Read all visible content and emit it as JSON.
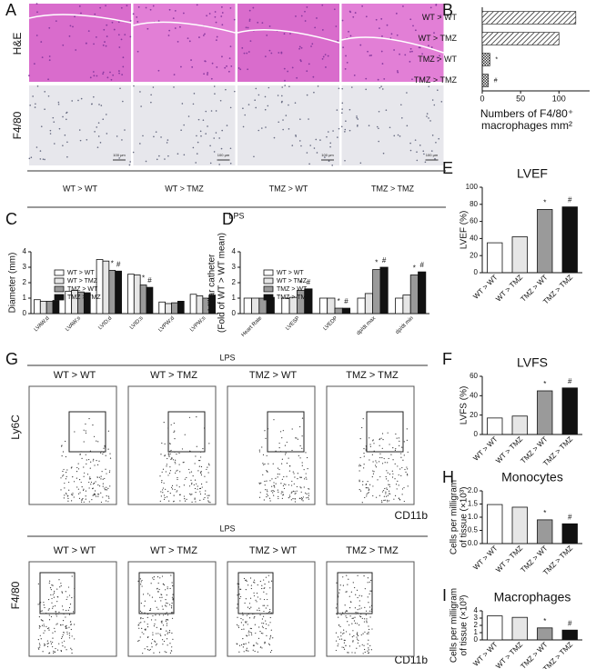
{
  "figure": {
    "panel_letters": [
      "A",
      "B",
      "C",
      "D",
      "E",
      "F",
      "G",
      "H",
      "I"
    ],
    "he_label": "H&E",
    "f480_label": "F4/80",
    "groups": [
      "WT > WT",
      "WT > TMZ",
      "TMZ > WT",
      "TMZ > TMZ"
    ],
    "lps": "LPS",
    "scale_bar": "100 μm",
    "flow": {
      "y_top": "Ly6C",
      "x": "CD11b",
      "y_bottom": "F4/80"
    }
  },
  "chart_data": [
    {
      "type": "barh",
      "categories": [
        "WT > WT",
        "WT > TMZ",
        "TMZ > WT",
        "TMZ > TMZ"
      ],
      "values": [
        122,
        100,
        10,
        8
      ],
      "markers": [
        null,
        null,
        "*",
        "#"
      ],
      "xlim": [
        0,
        140
      ],
      "xticks": [
        0,
        50,
        100
      ],
      "x_label": [
        "Numbers of F4/80⁺",
        "macrophages mm²"
      ]
    },
    {
      "type": "bar",
      "categories": [
        "LVAW;d",
        "LVAW;s",
        "LVID;d",
        "LVID;s",
        "LVPW;d",
        "LVPW;s"
      ],
      "series": [
        {
          "name": "WT > WT",
          "color": "#ffffff",
          "values": [
            0.9,
            1.45,
            3.5,
            2.55,
            0.75,
            1.25
          ],
          "markers": [
            null,
            null,
            null,
            null,
            null,
            null
          ]
        },
        {
          "name": "WT > TMZ",
          "color": "#e6e6e6",
          "values": [
            0.8,
            1.5,
            3.4,
            2.5,
            0.65,
            1.15
          ],
          "markers": [
            null,
            null,
            null,
            null,
            null,
            null
          ]
        },
        {
          "name": "TMZ > WT",
          "color": "#9a9a9a",
          "values": [
            0.8,
            1.4,
            2.8,
            1.85,
            0.7,
            1.0
          ],
          "markers": [
            null,
            null,
            "*",
            "*",
            null,
            null
          ]
        },
        {
          "name": "TMZ > TMZ",
          "color": "#111111",
          "values": [
            0.85,
            1.35,
            2.75,
            1.7,
            0.8,
            1.2
          ],
          "markers": [
            null,
            null,
            "#",
            "#",
            null,
            null
          ]
        }
      ],
      "ylim": [
        0,
        4
      ],
      "yticks": [
        0,
        1,
        2,
        3,
        4
      ],
      "y_label": [
        "Diameter (mm)"
      ]
    },
    {
      "type": "bar",
      "categories": [
        "Heart Rate",
        "LVESP",
        "LVEDP",
        "dp/dt max",
        "dp/dt min"
      ],
      "series": [
        {
          "name": "WT > WT",
          "color": "#ffffff",
          "values": [
            1.0,
            1.0,
            1.0,
            1.0,
            1.0
          ],
          "markers": [
            null,
            null,
            null,
            null,
            null
          ]
        },
        {
          "name": "WT > TMZ",
          "color": "#e6e6e6",
          "values": [
            1.0,
            1.05,
            1.0,
            1.3,
            1.2
          ],
          "markers": [
            null,
            null,
            null,
            null,
            null
          ]
        },
        {
          "name": "TMZ > WT",
          "color": "#9a9a9a",
          "values": [
            1.0,
            1.5,
            0.35,
            2.85,
            2.5
          ],
          "markers": [
            null,
            "*",
            "*",
            "*",
            "*"
          ]
        },
        {
          "name": "TMZ > TMZ",
          "color": "#111111",
          "values": [
            1.05,
            1.6,
            0.35,
            3.0,
            2.7
          ],
          "markers": [
            null,
            "#",
            "#",
            "#",
            "#"
          ]
        }
      ],
      "ylim": [
        0,
        4
      ],
      "yticks": [
        0,
        1,
        2,
        3,
        4
      ],
      "y_label": [
        "Millar catheter",
        "(Fold of WT > WT mean)"
      ]
    },
    {
      "type": "bar",
      "title": "LVEF",
      "categories": [
        "WT > WT",
        "WT > TMZ",
        "TMZ > WT",
        "TMZ > TMZ"
      ],
      "values": [
        35,
        42,
        74,
        77
      ],
      "colors": [
        "#ffffff",
        "#e6e6e6",
        "#9a9a9a",
        "#111111"
      ],
      "markers": [
        null,
        null,
        "*",
        "#"
      ],
      "ylim": [
        0,
        100
      ],
      "yticks": [
        0,
        20,
        40,
        60,
        80,
        100
      ],
      "y_label": [
        "LVEF (%)"
      ]
    },
    {
      "type": "bar",
      "title": "LVFS",
      "categories": [
        "WT > WT",
        "WT > TMZ",
        "TMZ > WT",
        "TMZ > TMZ"
      ],
      "values": [
        17,
        19,
        45,
        48
      ],
      "colors": [
        "#ffffff",
        "#e6e6e6",
        "#9a9a9a",
        "#111111"
      ],
      "markers": [
        null,
        null,
        "*",
        "#"
      ],
      "ylim": [
        0,
        60
      ],
      "yticks": [
        0,
        20,
        40,
        60
      ],
      "y_label": [
        "LVFS (%)"
      ]
    },
    {
      "type": "bar",
      "title": "Monocytes",
      "categories": [
        "WT > WT",
        "WT > TMZ",
        "TMZ > WT",
        "TMZ > TMZ"
      ],
      "values": [
        1.48,
        1.38,
        0.9,
        0.75
      ],
      "colors": [
        "#ffffff",
        "#e6e6e6",
        "#9a9a9a",
        "#111111"
      ],
      "markers": [
        null,
        null,
        "*",
        "#"
      ],
      "ylim": [
        0,
        2
      ],
      "yticks": [
        {
          "value": 0,
          "label": "0.0"
        },
        {
          "value": 0.5,
          "label": "0.5"
        },
        {
          "value": 1,
          "label": "1.0"
        },
        {
          "value": 1.5,
          "label": "1.5"
        },
        {
          "value": 2,
          "label": "2.0"
        }
      ],
      "y_label": [
        "Cells per milligram",
        "of tissue (×10³)"
      ]
    },
    {
      "type": "bar",
      "title": "Macrophages",
      "categories": [
        "WT > WT",
        "WT > TMZ",
        "TMZ > WT",
        "TMZ > TMZ"
      ],
      "values": [
        3.3,
        3.1,
        1.65,
        1.35
      ],
      "colors": [
        "#ffffff",
        "#e6e6e6",
        "#9a9a9a",
        "#111111"
      ],
      "markers": [
        null,
        null,
        "*",
        "#"
      ],
      "ylim": [
        0,
        4
      ],
      "yticks": [
        0,
        1,
        2,
        3,
        4
      ],
      "y_label": [
        "Cells per milligram",
        "of tissue (×10³)"
      ]
    }
  ]
}
